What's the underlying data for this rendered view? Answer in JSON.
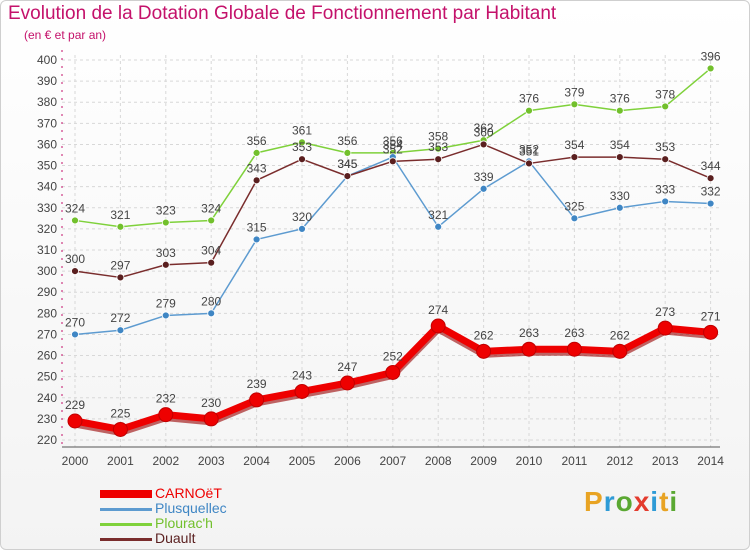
{
  "title": "Evolution de la Dotation Globale de Fonctionnement par Habitant",
  "subtitle": "(en € et par an)",
  "logo": {
    "text": "Proxiti",
    "letters": [
      {
        "char": "P",
        "color": "#e8a323"
      },
      {
        "char": "r",
        "color": "#2e9bd6"
      },
      {
        "char": "o",
        "color": "#5aa832"
      },
      {
        "char": "x",
        "color": "#e33b2e"
      },
      {
        "char": "i",
        "color": "#2e9bd6"
      },
      {
        "char": "t",
        "color": "#e8a323"
      },
      {
        "char": "i",
        "color": "#5aa832"
      }
    ]
  },
  "chart_data": {
    "type": "line",
    "title": "Evolution de la Dotation Globale de Fonctionnement par Habitant",
    "xlabel": "",
    "ylabel": "(en € et par an)",
    "ylim": [
      220,
      400
    ],
    "yticks": [
      220,
      230,
      240,
      250,
      260,
      270,
      280,
      290,
      300,
      310,
      320,
      330,
      340,
      350,
      360,
      370,
      380,
      390,
      400
    ],
    "categories": [
      "2000",
      "2001",
      "2002",
      "2003",
      "2004",
      "2005",
      "2006",
      "2007",
      "2008",
      "2009",
      "2010",
      "2011",
      "2012",
      "2013",
      "2014"
    ],
    "series": [
      {
        "name": "Plourac'h",
        "color": "#7fd13b",
        "marker": "#72c02c",
        "thick": false,
        "values": [
          324,
          321,
          323,
          324,
          356,
          361,
          356,
          356,
          358,
          362,
          376,
          379,
          376,
          378,
          396
        ]
      },
      {
        "name": "Plusquellec",
        "color": "#5d9bd0",
        "marker": "#3f86c4",
        "thick": false,
        "values": [
          270,
          272,
          279,
          280,
          315,
          320,
          345,
          354,
          321,
          339,
          352,
          325,
          330,
          333,
          332
        ]
      },
      {
        "name": "Duault",
        "color": "#7a2d2d",
        "marker": "#5a1f1f",
        "thick": false,
        "values": [
          300,
          297,
          303,
          304,
          343,
          353,
          345,
          352,
          353,
          360,
          351,
          354,
          354,
          353,
          344
        ]
      },
      {
        "name": "CARNOëT",
        "color": "#ee0000",
        "marker": "#ee0000",
        "thick": true,
        "values": [
          229,
          225,
          232,
          230,
          239,
          243,
          247,
          252,
          274,
          262,
          263,
          263,
          262,
          273,
          271
        ]
      }
    ],
    "legend": [
      "CARNOëT",
      "Plusquellec",
      "Plourac'h",
      "Duault"
    ],
    "legend_position": "bottom-left",
    "grid": true
  }
}
